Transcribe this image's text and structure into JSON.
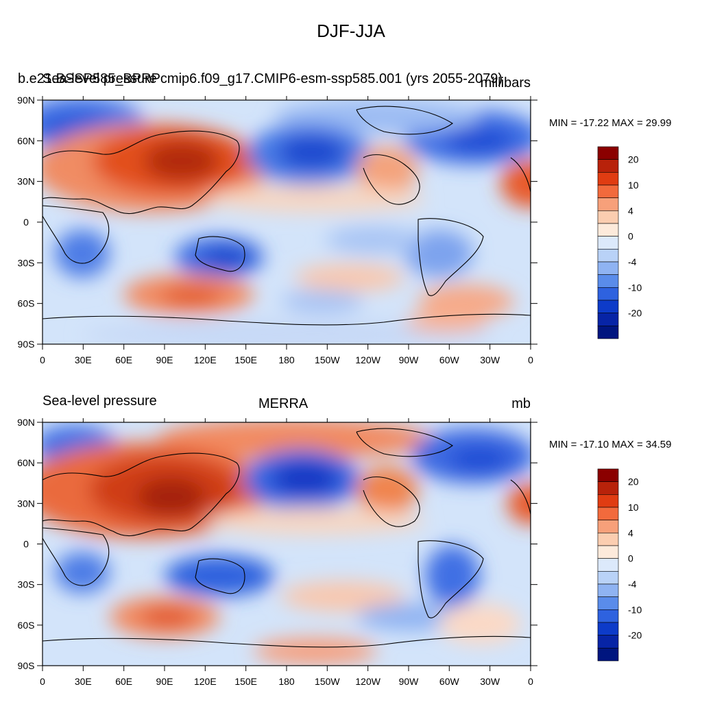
{
  "figure": {
    "title": "DJF-JJA"
  },
  "chart_data": [
    {
      "type": "heatmap",
      "variable": "Sea-level pressure",
      "title_left": "b.e21.BSSP585_BPRPcmip6.f09_g17.CMIP6-esm-ssp585.001 (yrs 2055-2079)",
      "title_left_overlay": "Sea-level pressure",
      "title_center": "",
      "units": "millibars",
      "min_max_label": "MIN = -17.22 MAX =  29.99",
      "min": -17.22,
      "max": 29.99,
      "x_ticks": [
        "0",
        "30E",
        "60E",
        "90E",
        "120E",
        "150E",
        "180",
        "150W",
        "120W",
        "90W",
        "60W",
        "30W",
        "0"
      ],
      "y_ticks": [
        "90N",
        "60N",
        "30N",
        "0",
        "30S",
        "60S",
        "90S"
      ],
      "colorbar_levels": [
        "20",
        "10",
        "4",
        "0",
        "-4",
        "-10",
        "-20"
      ],
      "colorbar_colors": [
        "#8b0000",
        "#b8220a",
        "#e03c12",
        "#f26a3c",
        "#f7a07a",
        "#fbcdb0",
        "#fdeadb",
        "#dce9fb",
        "#b9d2f7",
        "#8fb3f2",
        "#5a8cea",
        "#2e62df",
        "#0d3bc9",
        "#0724a6",
        "#00157f"
      ]
    },
    {
      "type": "heatmap",
      "variable": "Sea-level pressure",
      "title_left": "Sea-level pressure",
      "title_center": "MERRA",
      "units": "mb",
      "min_max_label": "MIN = -17.10 MAX =  34.59",
      "min": -17.1,
      "max": 34.59,
      "x_ticks": [
        "0",
        "30E",
        "60E",
        "90E",
        "120E",
        "150E",
        "180",
        "150W",
        "120W",
        "90W",
        "60W",
        "30W",
        "0"
      ],
      "y_ticks": [
        "90N",
        "60N",
        "30N",
        "0",
        "30S",
        "60S",
        "90S"
      ],
      "colorbar_levels": [
        "20",
        "10",
        "4",
        "0",
        "-4",
        "-10",
        "-20"
      ],
      "colorbar_colors": [
        "#8b0000",
        "#b8220a",
        "#e03c12",
        "#f26a3c",
        "#f7a07a",
        "#fbcdb0",
        "#fdeadb",
        "#dce9fb",
        "#b9d2f7",
        "#8fb3f2",
        "#5a8cea",
        "#2e62df",
        "#0d3bc9",
        "#0724a6",
        "#00157f"
      ]
    }
  ]
}
